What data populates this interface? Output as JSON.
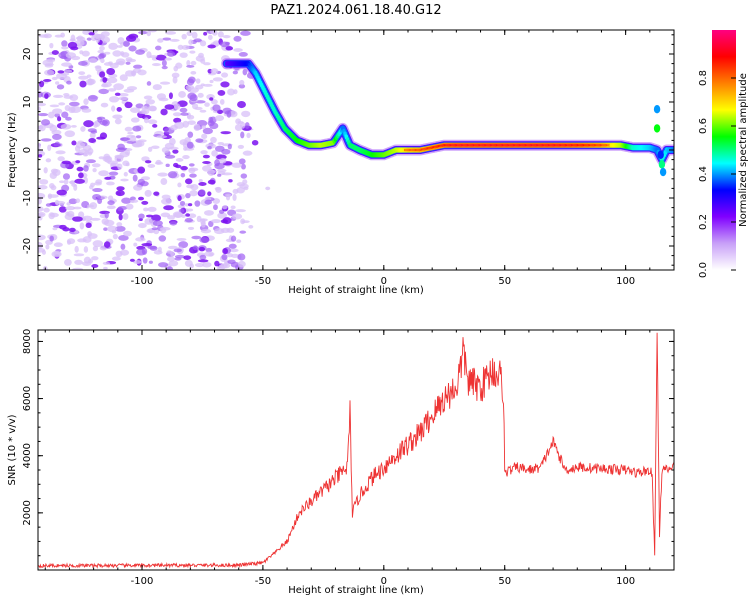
{
  "title": "PAZ1.2024.061.18.40.G12",
  "chart_data": [
    {
      "type": "heatmap",
      "xlabel": "Height of straight line (km)",
      "ylabel": "Frequency (Hz)",
      "xlim": [
        -143,
        120
      ],
      "ylim": [
        -25,
        25
      ],
      "x_ticks": [
        -100,
        -50,
        0,
        50,
        100
      ],
      "y_ticks": [
        20,
        10,
        0,
        -10,
        -20
      ],
      "colorbar": {
        "label": "Normalized spectral amplitude",
        "range": [
          0,
          1
        ],
        "ticks": [
          0.0,
          0.2,
          0.4,
          0.6,
          0.8
        ],
        "colormap": [
          "#ffffff",
          "#c8a0f8",
          "#8000ff",
          "#0000ff",
          "#00ffff",
          "#00ff00",
          "#ffff00",
          "#ff8000",
          "#ff0000",
          "#ff0080"
        ]
      },
      "ridge": {
        "x": [
          -65,
          -56,
          -53,
          -48,
          -45,
          -41,
          -36,
          -31,
          -26,
          -21,
          -17,
          -14,
          -10,
          -5,
          0,
          5,
          10,
          15,
          20,
          25,
          30,
          40,
          50,
          60,
          70,
          80,
          90,
          98,
          103,
          110,
          113,
          115,
          117,
          120
        ],
        "y": [
          18,
          18,
          16,
          11,
          8,
          4.5,
          2,
          1,
          1,
          1.5,
          4.5,
          1,
          0,
          -1,
          -1,
          0,
          0,
          0,
          0.5,
          1,
          1,
          1,
          1,
          1,
          1,
          1,
          1,
          1,
          0.5,
          0.5,
          0,
          -2,
          0,
          0
        ],
        "amplitude": [
          0.3,
          0.4,
          0.5,
          0.55,
          0.55,
          0.6,
          0.65,
          0.7,
          0.75,
          0.72,
          0.45,
          0.6,
          0.6,
          0.65,
          0.7,
          0.75,
          0.82,
          0.85,
          0.88,
          0.9,
          0.92,
          0.92,
          0.92,
          0.92,
          0.92,
          0.9,
          0.85,
          0.75,
          0.55,
          0.5,
          0.45,
          0.55,
          0.5,
          0.45
        ]
      },
      "noise_region_x": [
        -143,
        -53
      ]
    },
    {
      "type": "line",
      "xlabel": "Height of straight line (km)",
      "ylabel": "SNR (10 * v/v)",
      "xlim": [
        -143,
        120
      ],
      "ylim": [
        0,
        8400
      ],
      "x_ticks": [
        -100,
        -50,
        0,
        50,
        100
      ],
      "y_ticks": [
        2000,
        4000,
        6000,
        8000
      ],
      "color": "#ee3333",
      "key_points": {
        "x": [
          -143,
          -60,
          -50,
          -45,
          -40,
          -35,
          -30,
          -25,
          -20,
          -15,
          -14,
          -13,
          -10,
          -5,
          0,
          5,
          10,
          15,
          20,
          25,
          30,
          33,
          35,
          40,
          45,
          48,
          49.5,
          50,
          55,
          60,
          65,
          70,
          75,
          80,
          90,
          100,
          105,
          110,
          111,
          112,
          113,
          114,
          115,
          117,
          120
        ],
        "y": [
          150,
          170,
          250,
          600,
          1000,
          2000,
          2400,
          2800,
          3200,
          3600,
          5500,
          2000,
          2600,
          3200,
          3600,
          4000,
          4400,
          4800,
          5400,
          6000,
          6400,
          7600,
          6600,
          6400,
          7000,
          6800,
          6300,
          3400,
          3600,
          3500,
          3600,
          4500,
          3500,
          3600,
          3550,
          3500,
          3400,
          3500,
          3300,
          500,
          8400,
          1200,
          3500,
          3500,
          3600
        ]
      }
    }
  ]
}
